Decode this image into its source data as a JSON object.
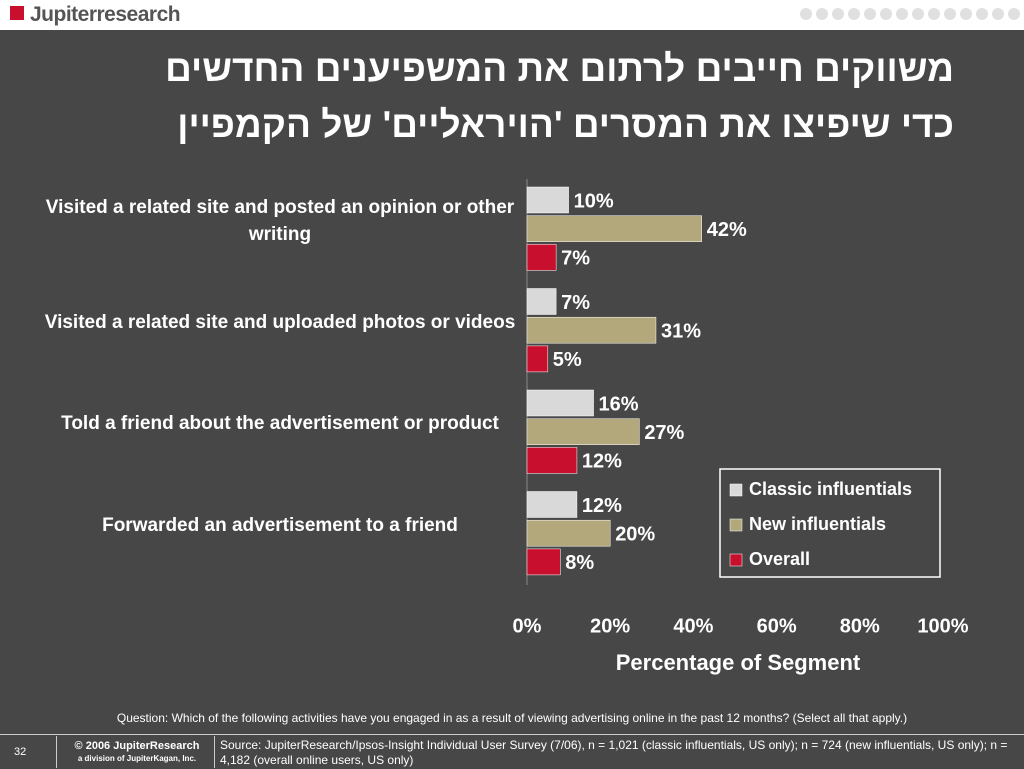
{
  "header": {
    "logo": "Jupiterresearch"
  },
  "title_lines": [
    "משווקים חייבים לרתום את המשפיענים החדשים",
    "כדי שיפיצו את המסרים 'הויראליים' של הקמפיין"
  ],
  "chart_data": {
    "type": "bar",
    "orientation": "horizontal",
    "categories": [
      "Visited a related site and posted an opinion or other writing",
      "Visited a related site and uploaded photos or videos",
      "Told a friend about the advertisement or product",
      "Forwarded an advertisement to a friend"
    ],
    "series": [
      {
        "name": "Classic influentials",
        "color": "#d9d9d9",
        "values": [
          10,
          7,
          16,
          12
        ],
        "value_labels": [
          "10%",
          "7%",
          "16%",
          "12%"
        ]
      },
      {
        "name": "New influentials",
        "color": "#b3a77c",
        "values": [
          42,
          31,
          27,
          20
        ],
        "value_labels": [
          "42%",
          "31%",
          "27%",
          "20%"
        ]
      },
      {
        "name": "Overall",
        "color": "#c8102e",
        "values": [
          7,
          5,
          12,
          8
        ],
        "value_labels": [
          "7%",
          "5%",
          "12%",
          "8%"
        ]
      }
    ],
    "xlim": [
      0,
      100
    ],
    "xticks": [
      {
        "value": 0,
        "label": "0%"
      },
      {
        "value": 20,
        "label": "20%"
      },
      {
        "value": 40,
        "label": "40%"
      },
      {
        "value": 60,
        "label": "60%"
      },
      {
        "value": 80,
        "label": "80%"
      },
      {
        "value": 100,
        "label": "100%"
      }
    ],
    "x_label": "Percentage of Segment",
    "legend": "lower right",
    "grid": false
  },
  "footer": {
    "question": "Question: Which of the following activities have you engaged in as a result of viewing advertising online in the past 12 months? (Select all that apply.)",
    "page": "32",
    "copyright": "© 2006 JupiterResearch",
    "division": "a division of JupiterKagan, Inc.",
    "source": "Source: JupiterResearch/Ipsos-Insight Individual User Survey (7/06), n = 1,021 (classic influentials, US only); n = 724 (new influentials, US only); n = 4,182 (overall online users, US only)"
  }
}
